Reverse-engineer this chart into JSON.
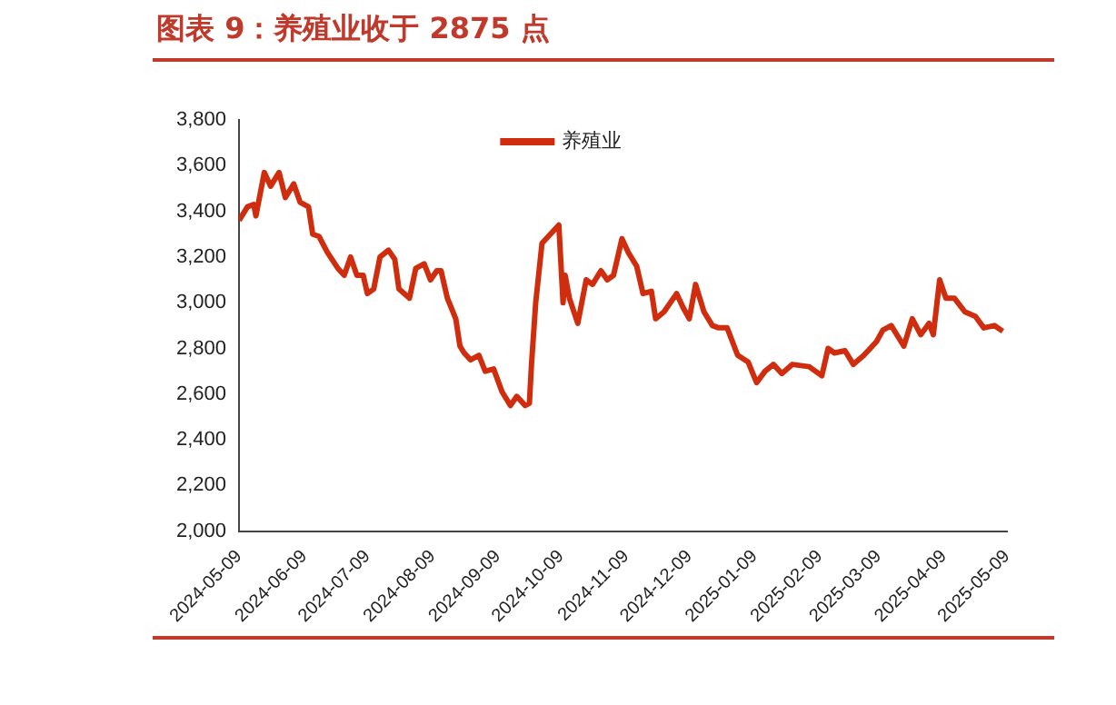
{
  "chart_data": {
    "type": "line",
    "title": "图表 9：养殖业收于 2875 点",
    "x": [
      "2024-05-09",
      "2024-05-13",
      "2024-05-16",
      "2024-05-17",
      "2024-05-21",
      "2024-05-24",
      "2024-05-28",
      "2024-05-31",
      "2024-06-04",
      "2024-06-07",
      "2024-06-11",
      "2024-06-13",
      "2024-06-16",
      "2024-06-20",
      "2024-06-25",
      "2024-06-28",
      "2024-07-01",
      "2024-07-04",
      "2024-07-07",
      "2024-07-09",
      "2024-07-12",
      "2024-07-15",
      "2024-07-19",
      "2024-07-22",
      "2024-07-24",
      "2024-07-29",
      "2024-08-01",
      "2024-08-05",
      "2024-08-08",
      "2024-08-11",
      "2024-08-13",
      "2024-08-16",
      "2024-08-20",
      "2024-08-22",
      "2024-08-24",
      "2024-08-27",
      "2024-08-31",
      "2024-09-03",
      "2024-09-07",
      "2024-09-11",
      "2024-09-15",
      "2024-09-18",
      "2024-09-22",
      "2024-09-24",
      "2024-09-25",
      "2024-09-27",
      "2024-09-30",
      "2024-10-08",
      "2024-10-10",
      "2024-10-11",
      "2024-10-13",
      "2024-10-17",
      "2024-10-21",
      "2024-10-24",
      "2024-10-28",
      "2024-10-31",
      "2024-11-03",
      "2024-11-07",
      "2024-11-10",
      "2024-11-14",
      "2024-11-17",
      "2024-11-21",
      "2024-11-23",
      "2024-11-27",
      "2024-12-03",
      "2024-12-06",
      "2024-12-09",
      "2024-12-12",
      "2024-12-16",
      "2024-12-20",
      "2024-12-23",
      "2024-12-27",
      "2025-01-01",
      "2025-01-06",
      "2025-01-10",
      "2025-01-14",
      "2025-01-18",
      "2025-01-22",
      "2025-01-27",
      "2025-02-04",
      "2025-02-10",
      "2025-02-13",
      "2025-02-16",
      "2025-02-21",
      "2025-02-25",
      "2025-03-02",
      "2025-03-08",
      "2025-03-11",
      "2025-03-15",
      "2025-03-21",
      "2025-03-25",
      "2025-03-29",
      "2025-04-02",
      "2025-04-04",
      "2025-04-07",
      "2025-04-10",
      "2025-04-14",
      "2025-04-19",
      "2025-04-24",
      "2025-04-28",
      "2025-05-03",
      "2025-05-07"
    ],
    "series": [
      {
        "name": "养殖业",
        "color": "#d02d0f",
        "values": [
          3360,
          3420,
          3430,
          3380,
          3570,
          3510,
          3570,
          3460,
          3520,
          3440,
          3420,
          3300,
          3290,
          3220,
          3150,
          3120,
          3200,
          3120,
          3120,
          3040,
          3060,
          3200,
          3230,
          3190,
          3060,
          3020,
          3150,
          3170,
          3100,
          3140,
          3140,
          3020,
          2930,
          2810,
          2780,
          2750,
          2770,
          2700,
          2710,
          2610,
          2550,
          2590,
          2550,
          2560,
          2730,
          3000,
          3260,
          3340,
          3000,
          3120,
          3020,
          2910,
          3100,
          3080,
          3140,
          3100,
          3120,
          3280,
          3220,
          3160,
          3040,
          3050,
          2930,
          2960,
          3040,
          2980,
          2930,
          3080,
          2960,
          2900,
          2890,
          2890,
          2770,
          2740,
          2650,
          2700,
          2730,
          2690,
          2730,
          2720,
          2680,
          2800,
          2780,
          2790,
          2730,
          2770,
          2830,
          2880,
          2900,
          2810,
          2930,
          2860,
          2910,
          2860,
          3100,
          3020,
          3020,
          2960,
          2940,
          2890,
          2900,
          2875
        ]
      }
    ],
    "xlim": [
      "2024-05-09",
      "2025-05-09"
    ],
    "xticks": [
      {
        "value": "2024-05-09",
        "label": "2024-05-09"
      },
      {
        "value": "2024-06-09",
        "label": "2024-06-09"
      },
      {
        "value": "2024-07-09",
        "label": "2024-07-09"
      },
      {
        "value": "2024-08-09",
        "label": "2024-08-09"
      },
      {
        "value": "2024-09-09",
        "label": "2024-09-09"
      },
      {
        "value": "2024-10-09",
        "label": "2024-10-09"
      },
      {
        "value": "2024-11-09",
        "label": "2024-11-09"
      },
      {
        "value": "2024-12-09",
        "label": "2024-12-09"
      },
      {
        "value": "2025-01-09",
        "label": "2025-01-09"
      },
      {
        "value": "2025-02-09",
        "label": "2025-02-09"
      },
      {
        "value": "2025-03-09",
        "label": "2025-03-09"
      },
      {
        "value": "2025-04-09",
        "label": "2025-04-09"
      },
      {
        "value": "2025-05-09",
        "label": "2025-05-09"
      }
    ],
    "ylim": [
      2000,
      3800
    ],
    "yticks": [
      {
        "value": 2000,
        "label": "2,000"
      },
      {
        "value": 2200,
        "label": "2,200"
      },
      {
        "value": 2400,
        "label": "2,400"
      },
      {
        "value": 2600,
        "label": "2,600"
      },
      {
        "value": 2800,
        "label": "2,800"
      },
      {
        "value": 3000,
        "label": "3,000"
      },
      {
        "value": 3200,
        "label": "3,200"
      },
      {
        "value": 3400,
        "label": "3,400"
      },
      {
        "value": 3600,
        "label": "3,600"
      },
      {
        "value": 3800,
        "label": "3,800"
      }
    ],
    "grid": false,
    "legend": "top",
    "marker": "none",
    "line_style": "solid"
  }
}
